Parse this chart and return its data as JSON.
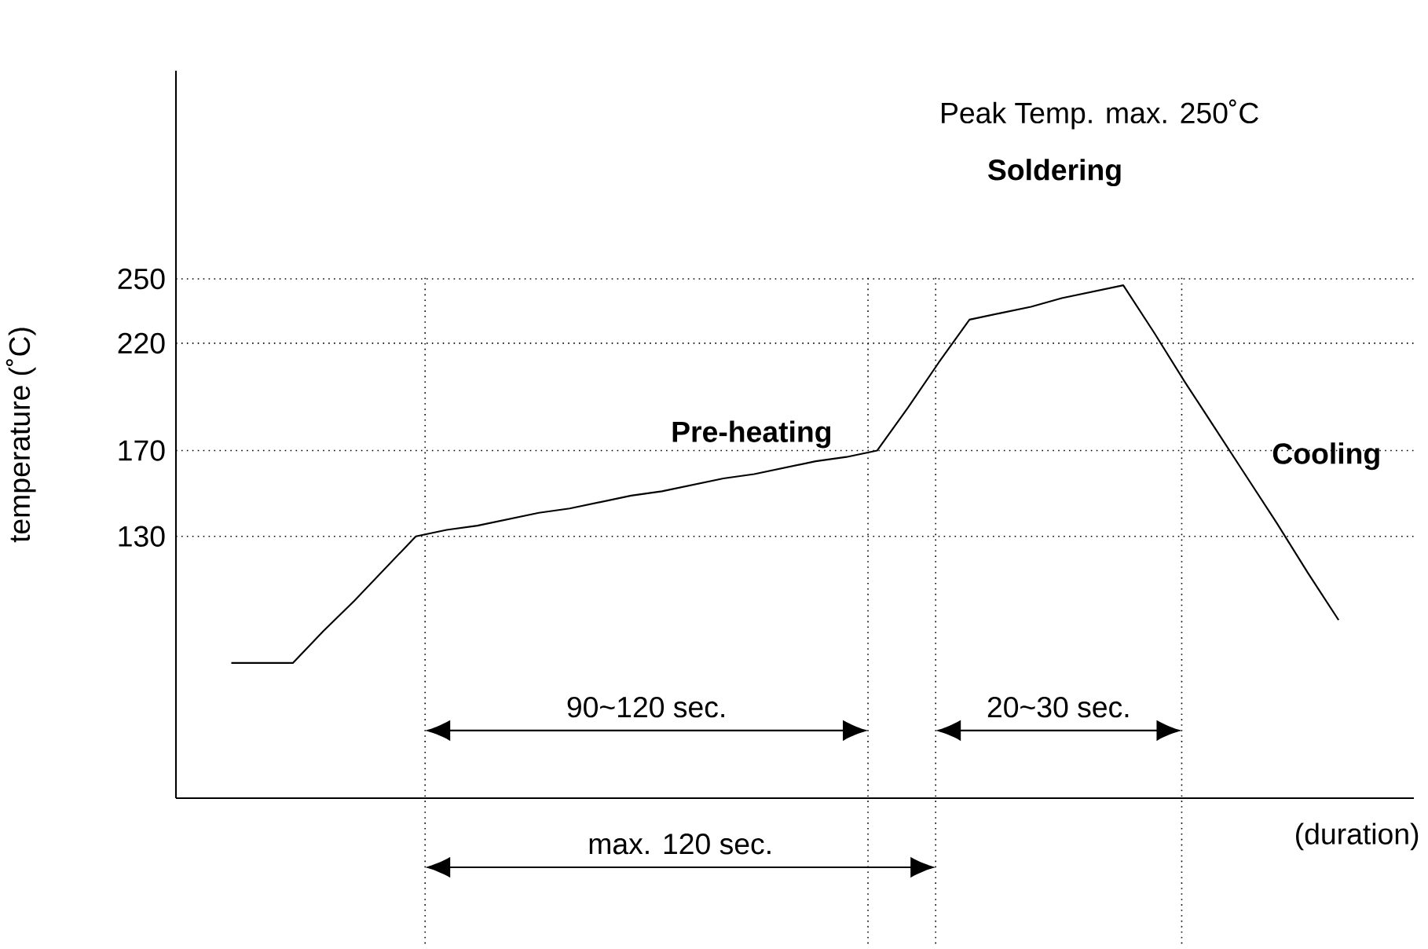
{
  "chart_data": {
    "type": "line",
    "xlabel": "(duration)",
    "ylabel": "temperature (˚C)",
    "categories": [
      null,
      null,
      null,
      null,
      null,
      null,
      null,
      null,
      null,
      null,
      null,
      null,
      null,
      null,
      null,
      null,
      null,
      null,
      null,
      null,
      null,
      null,
      null,
      null,
      null,
      null,
      null,
      null,
      null,
      null,
      null,
      null,
      null,
      null,
      null,
      null,
      null
    ],
    "series": [
      {
        "color": "#000000",
        "values": [
          71,
          71,
          71,
          86,
          100,
          115,
          130,
          133,
          135,
          138,
          141,
          143,
          146,
          149,
          151,
          154,
          157,
          159,
          162,
          165,
          167,
          170,
          190,
          211,
          231,
          234,
          237,
          241,
          244,
          247,
          225,
          202,
          180,
          158,
          136,
          113,
          91
        ]
      }
    ],
    "ylim": [
      8,
      347
    ],
    "yticks": [
      130,
      170,
      220,
      250
    ],
    "tick_labels": "y",
    "grid": false,
    "marker": "none",
    "line_style": "solid",
    "ref_lines": [
      {
        "axis": "y",
        "value": 250,
        "line_style": "dotted"
      },
      {
        "axis": "y",
        "value": 220,
        "line_style": "dotted"
      },
      {
        "axis": "y",
        "value": 170,
        "line_style": "dotted"
      },
      {
        "axis": "y",
        "value": 130,
        "line_style": "dotted"
      }
    ],
    "annotations": [
      "Peak Temp. max. 250˚C",
      "Soldering",
      "Pre-heating",
      "Cooling",
      "90~120 sec.",
      "20~30 sec.",
      "max. 120 sec."
    ]
  }
}
